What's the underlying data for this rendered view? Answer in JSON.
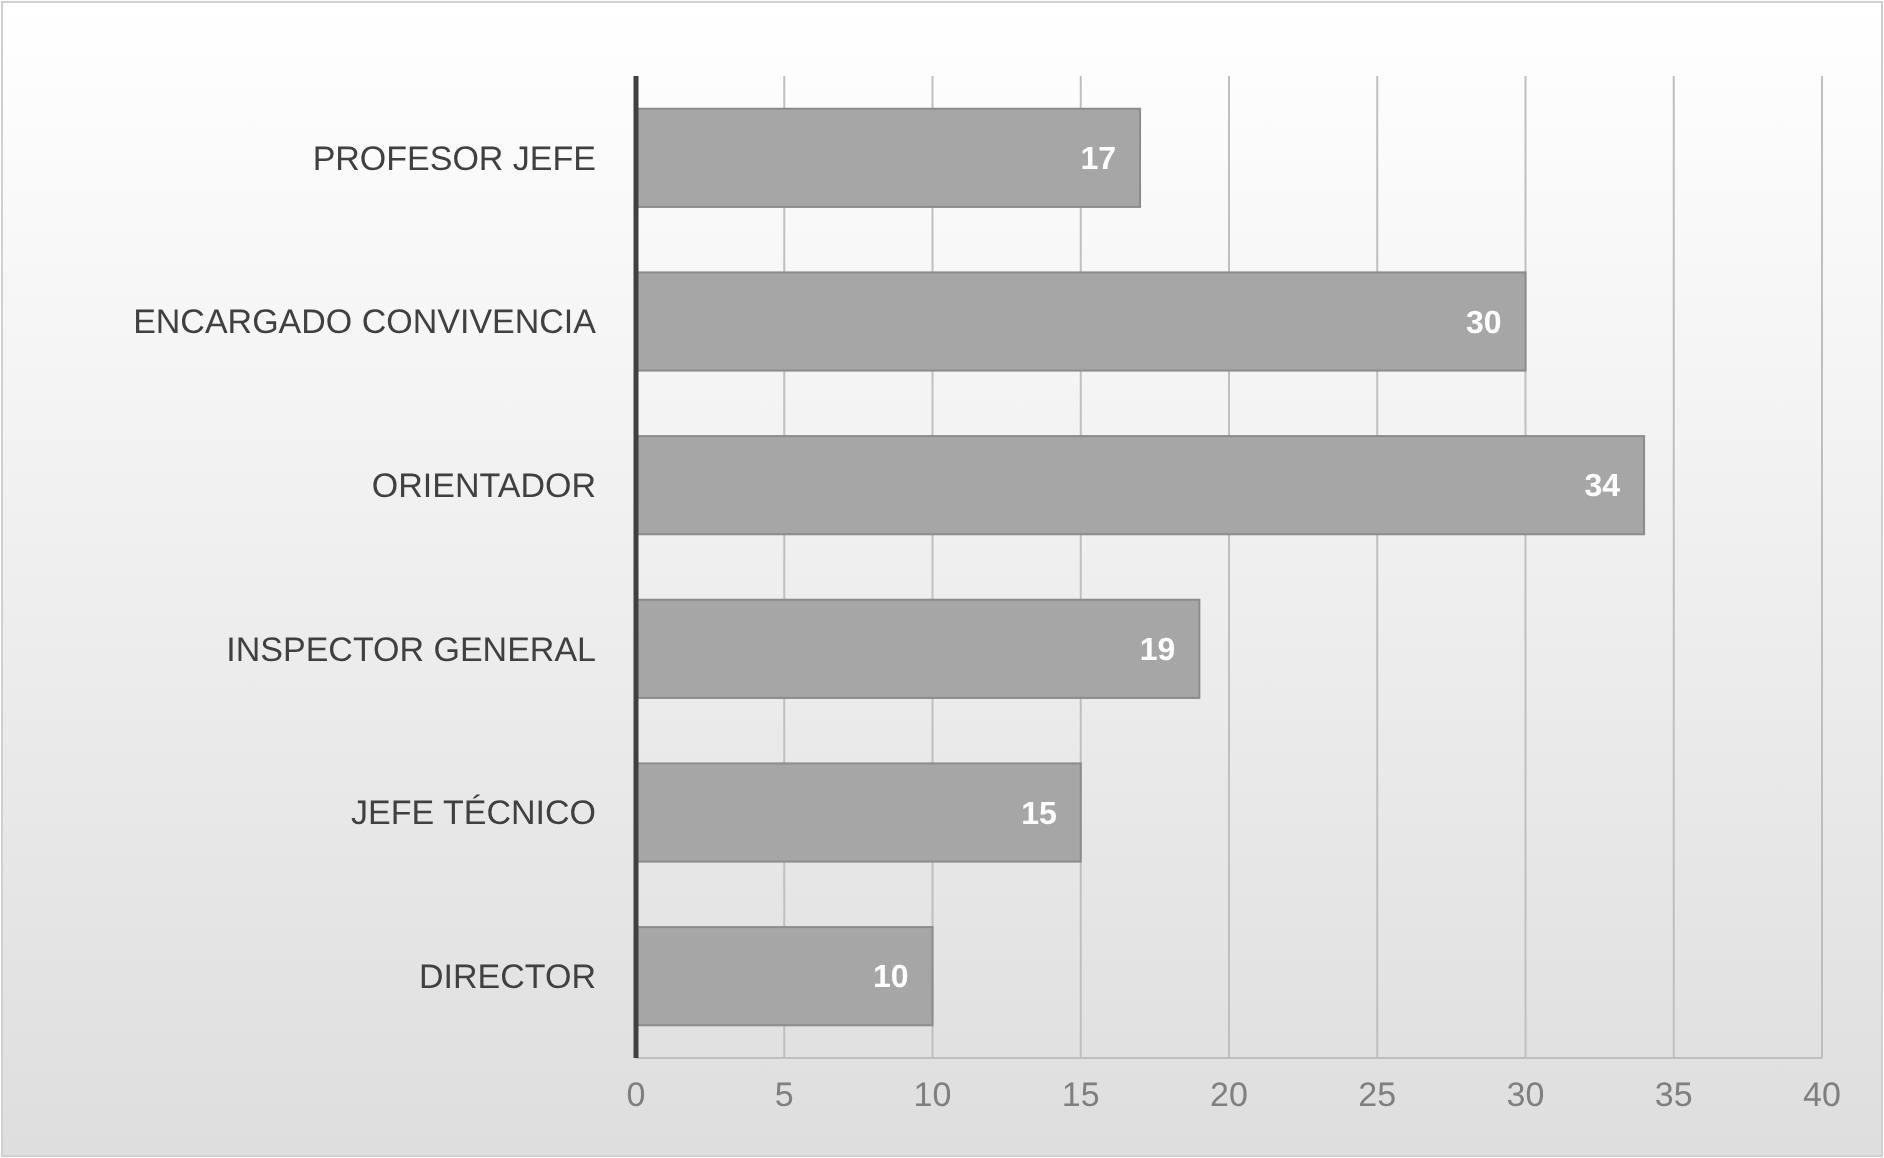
{
  "chart_data": {
    "type": "bar",
    "orientation": "horizontal",
    "categories": [
      "PROFESOR JEFE",
      "ENCARGADO CONVIVENCIA",
      "ORIENTADOR",
      "INSPECTOR GENERAL",
      "JEFE TÉCNICO",
      "DIRECTOR"
    ],
    "values": [
      17,
      30,
      34,
      19,
      15,
      10
    ],
    "color": "#a6a6a6",
    "xlim": [
      0,
      40
    ],
    "xticks": [
      0,
      5,
      10,
      15,
      20,
      25,
      30,
      35,
      40
    ],
    "grid": "x",
    "data_labels": true
  }
}
